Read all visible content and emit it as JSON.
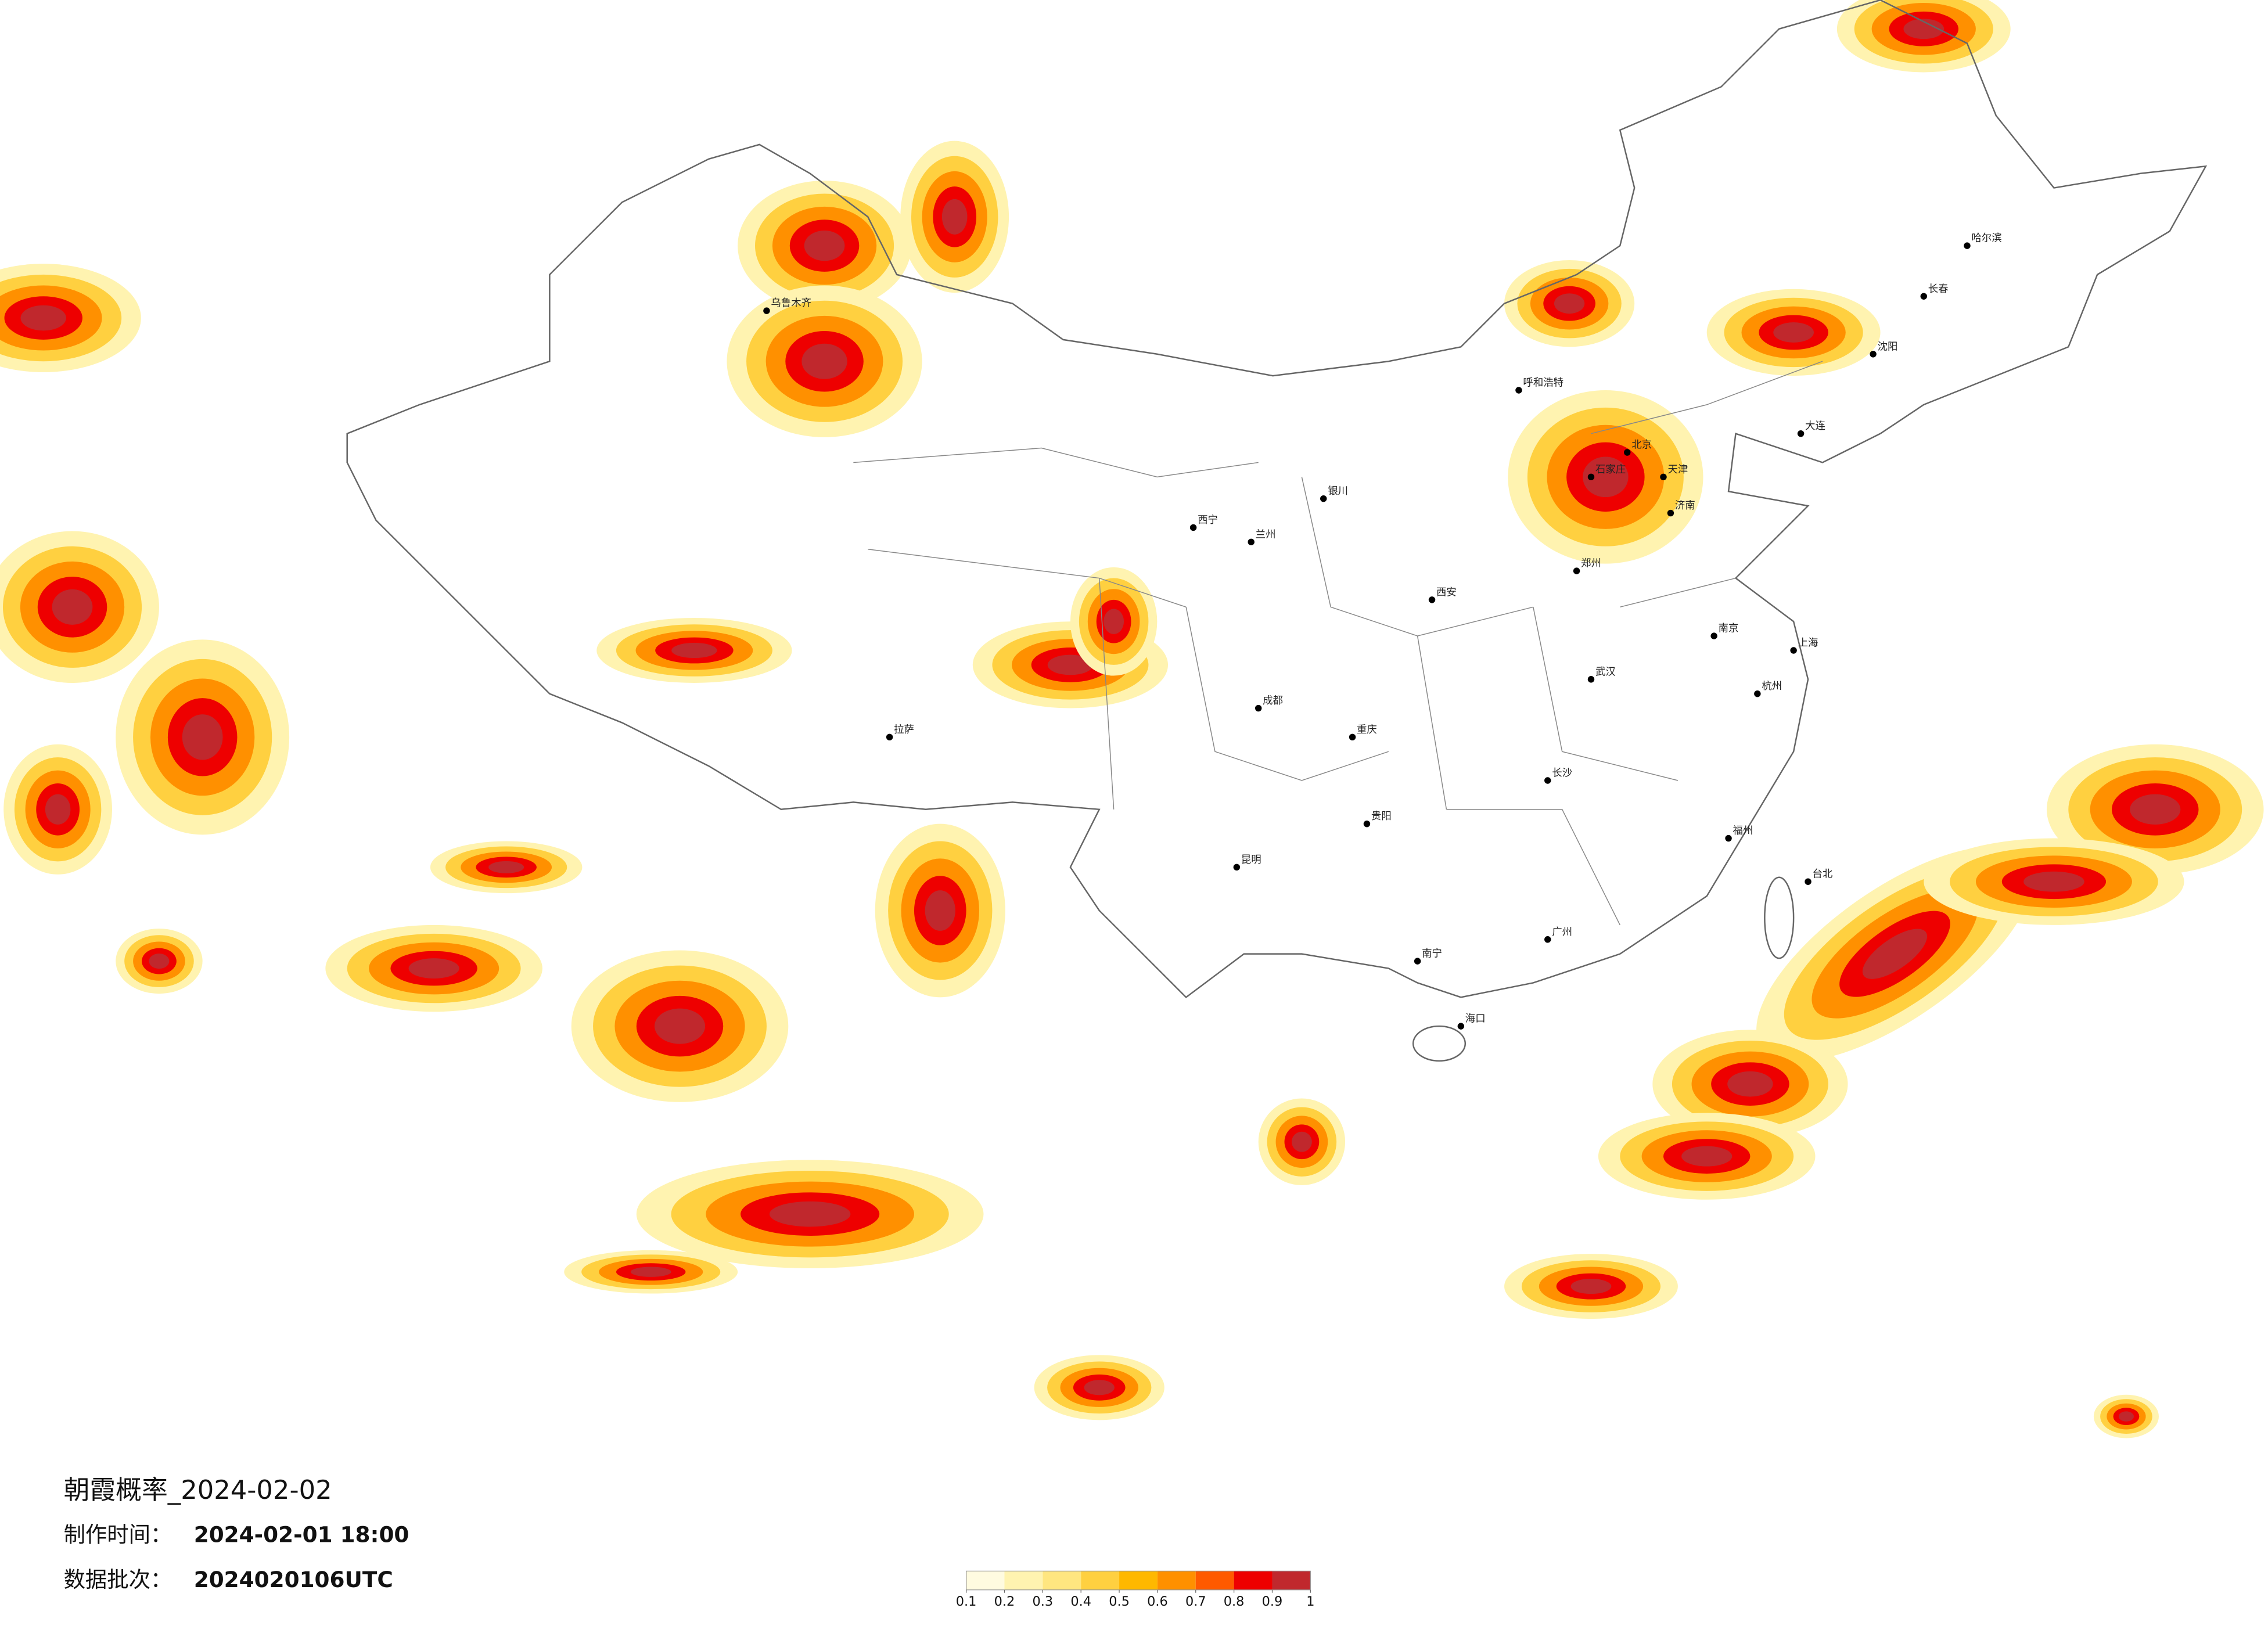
{
  "title": "朝霞概率_2024-02-02",
  "production_time_label": "制作时间：",
  "production_time": "2024-02-01 18:00",
  "batch_label": "数据批次：",
  "batch": "2024020106UTC",
  "colorbar": {
    "ticks": [
      0.1,
      0.2,
      0.3,
      0.4,
      0.5,
      0.6,
      0.7,
      0.8,
      0.9,
      1
    ],
    "colors": [
      "#fffbe0",
      "#fff3b0",
      "#ffe680",
      "#ffd040",
      "#ffb800",
      "#ff9000",
      "#ff5a00",
      "#ee0000",
      "#c0282d"
    ]
  },
  "cities": [
    "北京",
    "天津",
    "石家庄",
    "济南",
    "郑州",
    "西安",
    "兰州",
    "成都",
    "重庆",
    "武汉",
    "长沙",
    "南京",
    "上海",
    "杭州",
    "福州",
    "广州",
    "南宁",
    "昆明",
    "贵阳",
    "拉萨",
    "乌鲁木齐",
    "哈尔滨",
    "长春",
    "沈阳",
    "呼和浩特",
    "银川",
    "西宁",
    "海口",
    "台北",
    "大连"
  ]
}
